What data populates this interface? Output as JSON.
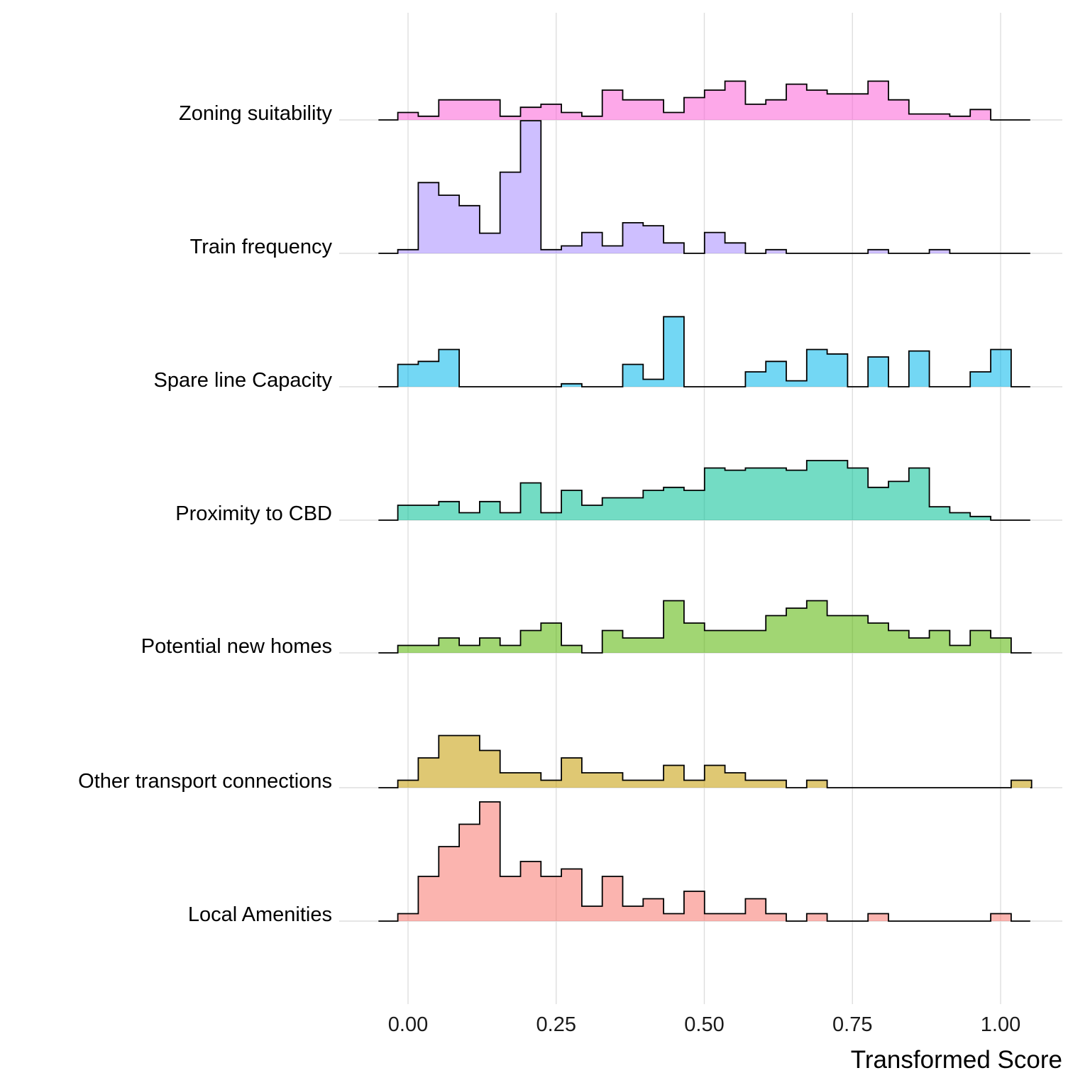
{
  "chart_data": {
    "type": "ridgeline-histogram",
    "xlabel": "Transformed Score",
    "ylabel": "",
    "xlim": [
      -0.067,
      1.067
    ],
    "x_ticks": [
      0,
      0.25,
      0.5,
      0.75,
      1
    ],
    "x_tick_labels": [
      "0.00",
      "0.25",
      "0.50",
      "0.75",
      "1.00"
    ],
    "grid": "vertical major gridlines and baselines",
    "bin_width": 0.0345,
    "bin_start": -0.0172,
    "series": [
      {
        "name": "Local Amenities",
        "color": "#F8766D",
        "counts": [
          1,
          6,
          10,
          13,
          16,
          6,
          8,
          6,
          7,
          2,
          6,
          2,
          3,
          1,
          4,
          1,
          1,
          3,
          1,
          0,
          1,
          0,
          0,
          1,
          0,
          0,
          0,
          0,
          0,
          1
        ]
      },
      {
        "name": "Other transport connections",
        "color": "#C49A00",
        "counts": [
          1,
          4,
          7,
          7,
          5,
          2,
          2,
          1,
          4,
          2,
          2,
          1,
          1,
          3,
          1,
          3,
          2,
          1,
          1,
          0,
          1,
          0,
          0,
          0,
          0,
          0,
          0,
          0,
          0,
          0,
          1
        ]
      },
      {
        "name": "Potential new homes",
        "color": "#53B400",
        "counts": [
          1,
          1,
          2,
          1,
          2,
          1,
          3,
          4,
          1,
          0,
          3,
          2,
          2,
          7,
          4,
          3,
          3,
          3,
          5,
          6,
          7,
          5,
          5,
          4,
          3,
          2,
          3,
          1,
          3,
          2,
          0
        ]
      },
      {
        "name": "Proximity to CBD",
        "color": "#00C094",
        "counts": [
          2,
          2,
          2.5,
          1,
          2.5,
          1,
          5,
          1,
          4,
          2,
          3,
          3,
          4,
          4.4,
          4,
          7,
          6.7,
          7,
          7,
          6.7,
          8,
          8,
          7,
          4.4,
          5.2,
          7,
          1.8,
          1,
          0.5
        ]
      },
      {
        "name": "Spare line Capacity",
        "color": "#00B6EB",
        "counts": [
          3,
          3.4,
          5,
          0,
          0,
          0,
          0,
          0,
          0.4,
          0,
          0,
          3,
          1,
          9.4,
          0,
          0,
          0,
          2,
          3.4,
          0.8,
          5,
          4.4,
          0,
          4,
          0,
          4.8,
          0,
          0,
          2,
          5
        ]
      },
      {
        "name": "Train frequency",
        "color": "#A58AFF",
        "counts": [
          0.5,
          9.5,
          7.8,
          6.4,
          2.7,
          10.9,
          17.8,
          0.5,
          1,
          2.8,
          1,
          4.1,
          3.7,
          1.4,
          0,
          2.8,
          1.4,
          0,
          0.5,
          0,
          0,
          0,
          0,
          0.5,
          0,
          0,
          0.5
        ]
      },
      {
        "name": "Zoning suitability",
        "color": "#FB61D7",
        "counts": [
          1,
          0.5,
          2.7,
          2.7,
          2.7,
          0.5,
          1.7,
          2.1,
          1,
          0.5,
          4,
          2.7,
          2.7,
          1,
          3,
          4,
          5.2,
          2.1,
          2.7,
          4.8,
          4,
          3.5,
          3.5,
          5.2,
          2.7,
          0.8,
          0.8,
          0.5,
          1.4
        ]
      }
    ]
  }
}
